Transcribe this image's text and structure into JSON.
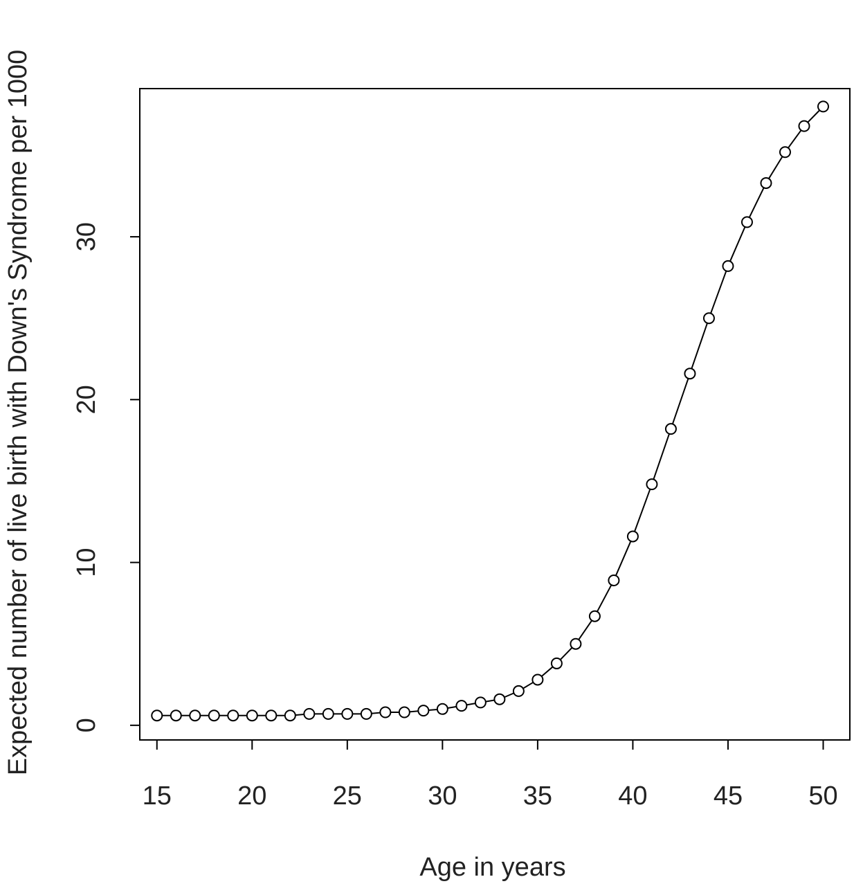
{
  "chart_data": {
    "type": "line",
    "title": "",
    "xlabel": "Age in years",
    "ylabel": "Expected number of live birth with Down's Syndrome per 1000",
    "x_ticks": [
      15,
      20,
      25,
      30,
      35,
      40,
      45,
      50
    ],
    "y_ticks": [
      0,
      10,
      20,
      30
    ],
    "xlim": [
      14.1,
      51.4
    ],
    "ylim": [
      -0.9,
      39.1
    ],
    "marker": "open-circle",
    "grid": false,
    "series": [
      {
        "x": [
          15,
          16,
          17,
          18,
          19,
          20,
          21,
          22,
          23,
          24,
          25,
          26,
          27,
          28,
          29,
          30,
          31,
          32,
          33,
          34,
          35,
          36,
          37,
          38,
          39,
          40,
          41,
          42,
          43,
          44,
          45,
          46,
          47,
          48,
          49,
          50
        ],
        "y": [
          0.6,
          0.6,
          0.6,
          0.6,
          0.6,
          0.6,
          0.6,
          0.6,
          0.7,
          0.7,
          0.7,
          0.7,
          0.8,
          0.8,
          0.9,
          1.0,
          1.2,
          1.4,
          1.6,
          2.1,
          2.8,
          3.8,
          5.0,
          6.7,
          8.9,
          11.6,
          14.8,
          18.2,
          21.6,
          25.0,
          28.2,
          30.9,
          33.3,
          35.2,
          36.8,
          38.0
        ]
      }
    ]
  }
}
